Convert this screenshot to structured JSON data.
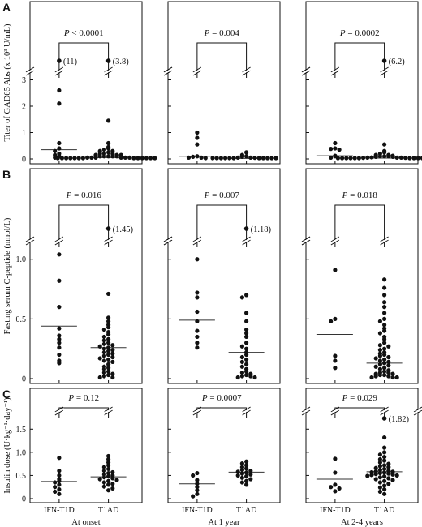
{
  "chart_data": {
    "type": "scatter",
    "group_labels": [
      "IFN-T1D",
      "T1AD"
    ],
    "timepoints": [
      "At onset",
      "At 1 year",
      "At 2-4 years"
    ],
    "panels": [
      {
        "letter": "A",
        "ylabel": "Titer of GAD65 Abs (x 10³ U/mL)",
        "yticks": [
          "0",
          "1",
          "2",
          "3"
        ],
        "ylim": [
          0,
          3.2
        ],
        "charts": [
          {
            "p_label": "P < 0.0001",
            "outliers": [
              {
                "group": 0,
                "label": "(11)"
              },
              {
                "group": 1,
                "label": "(3.8)"
              }
            ],
            "medians": [
              0.35,
              0.05
            ],
            "series": [
              {
                "name": "IFN-T1D",
                "values": [
                  2.6,
                  2.1,
                  0.6,
                  0.4,
                  0.3,
                  0.2,
                  0.15,
                  0.1,
                  0.05
                ]
              },
              {
                "name": "T1AD",
                "values": [
                  1.45,
                  0.6,
                  0.45,
                  0.4,
                  0.35,
                  0.3,
                  0.3,
                  0.25,
                  0.2,
                  0.2,
                  0.2,
                  0.15,
                  0.15,
                  0.15,
                  0.1,
                  0.1,
                  0.1,
                  0.1,
                  0.1,
                  0.05,
                  0.05,
                  0.05,
                  0.05,
                  0.05,
                  0.05,
                  0.03,
                  0.03,
                  0.03,
                  0.03,
                  0.02,
                  0.02,
                  0.02,
                  0.02,
                  0.02,
                  0.01,
                  0.01,
                  0.01,
                  0.01
                ]
              }
            ]
          },
          {
            "p_label": "P = 0.004",
            "outliers": [],
            "medians": [
              0.1,
              0.02
            ],
            "series": [
              {
                "name": "IFN-T1D",
                "values": [
                  1.0,
                  0.8,
                  0.55,
                  0.1,
                  0.08,
                  0.05,
                  0.05,
                  0.03
                ]
              },
              {
                "name": "T1AD",
                "values": [
                  0.25,
                  0.15,
                  0.1,
                  0.08,
                  0.05,
                  0.05,
                  0.04,
                  0.03,
                  0.03,
                  0.02,
                  0.02,
                  0.02,
                  0.01,
                  0.01,
                  0.01,
                  0.01,
                  0.01,
                  0.01
                ]
              }
            ]
          },
          {
            "p_label": "P = 0.0002",
            "outliers": [
              {
                "group": 1,
                "label": "(6.2)"
              }
            ],
            "medians": [
              0.12,
              0.03
            ],
            "series": [
              {
                "name": "IFN-T1D",
                "values": [
                  0.6,
                  0.4,
                  0.38,
                  0.35,
                  0.12,
                  0.1,
                  0.05
                ]
              },
              {
                "name": "T1AD",
                "values": [
                  0.55,
                  0.3,
                  0.25,
                  0.2,
                  0.15,
                  0.15,
                  0.12,
                  0.1,
                  0.1,
                  0.1,
                  0.08,
                  0.08,
                  0.06,
                  0.05,
                  0.05,
                  0.05,
                  0.04,
                  0.04,
                  0.03,
                  0.03,
                  0.03,
                  0.02,
                  0.02,
                  0.02,
                  0.02,
                  0.01,
                  0.01,
                  0.01,
                  0.01,
                  0.01
                ]
              }
            ]
          }
        ]
      },
      {
        "letter": "B",
        "ylabel": "Fasting serum C-peptide (nmol/L)",
        "yticks": [
          "0",
          "0.5",
          "1.0"
        ],
        "ylim": [
          0,
          1.1
        ],
        "charts": [
          {
            "p_label": "P = 0.016",
            "outliers": [
              {
                "group": 1,
                "label": "(1.45)"
              }
            ],
            "medians": [
              0.44,
              0.26
            ],
            "series": [
              {
                "name": "IFN-T1D",
                "values": [
                  1.04,
                  0.82,
                  0.6,
                  0.42,
                  0.36,
                  0.33,
                  0.3,
                  0.26,
                  0.2,
                  0.15,
                  0.13
                ]
              },
              {
                "name": "T1AD",
                "values": [
                  0.71,
                  0.51,
                  0.48,
                  0.45,
                  0.43,
                  0.41,
                  0.39,
                  0.37,
                  0.35,
                  0.33,
                  0.32,
                  0.3,
                  0.29,
                  0.28,
                  0.27,
                  0.26,
                  0.25,
                  0.24,
                  0.23,
                  0.22,
                  0.21,
                  0.2,
                  0.19,
                  0.18,
                  0.17,
                  0.16,
                  0.15,
                  0.14,
                  0.12,
                  0.1,
                  0.09,
                  0.08,
                  0.06,
                  0.05,
                  0.04,
                  0.03,
                  0.02,
                  0.01,
                  0.01
                ]
              }
            ]
          },
          {
            "p_label": "P = 0.007",
            "outliers": [
              {
                "group": 1,
                "label": "(1.18)"
              }
            ],
            "medians": [
              0.49,
              0.22
            ],
            "series": [
              {
                "name": "IFN-T1D",
                "values": [
                  1.0,
                  0.72,
                  0.68,
                  0.56,
                  0.48,
                  0.4,
                  0.35,
                  0.3,
                  0.26
                ]
              },
              {
                "name": "T1AD",
                "values": [
                  0.7,
                  0.68,
                  0.55,
                  0.48,
                  0.41,
                  0.38,
                  0.35,
                  0.3,
                  0.27,
                  0.25,
                  0.22,
                  0.2,
                  0.18,
                  0.16,
                  0.14,
                  0.12,
                  0.1,
                  0.08,
                  0.06,
                  0.05,
                  0.04,
                  0.03,
                  0.02,
                  0.02,
                  0.01,
                  0.01
                ]
              }
            ]
          },
          {
            "p_label": "P = 0.018",
            "outliers": [],
            "medians": [
              0.37,
              0.13
            ],
            "series": [
              {
                "name": "IFN-T1D",
                "values": [
                  0.91,
                  0.5,
                  0.48,
                  0.19,
                  0.15,
                  0.09
                ]
              },
              {
                "name": "T1AD",
                "values": [
                  0.83,
                  0.76,
                  0.7,
                  0.64,
                  0.6,
                  0.55,
                  0.5,
                  0.48,
                  0.45,
                  0.42,
                  0.4,
                  0.38,
                  0.35,
                  0.33,
                  0.3,
                  0.28,
                  0.27,
                  0.25,
                  0.24,
                  0.22,
                  0.21,
                  0.2,
                  0.19,
                  0.18,
                  0.17,
                  0.16,
                  0.15,
                  0.14,
                  0.13,
                  0.12,
                  0.11,
                  0.1,
                  0.09,
                  0.08,
                  0.07,
                  0.06,
                  0.05,
                  0.05,
                  0.04,
                  0.04,
                  0.03,
                  0.03,
                  0.02,
                  0.02,
                  0.01,
                  0.01,
                  0.01
                ]
              }
            ]
          }
        ]
      },
      {
        "letter": "C",
        "ylabel": "Insulin dose (U·kg⁻¹·day⁻¹)",
        "yticks": [
          "0",
          "0.5",
          "1.0",
          "1.5"
        ],
        "ylim": [
          0,
          1.75
        ],
        "charts": [
          {
            "p_label": "P = 0.12",
            "outliers": [],
            "medians": [
              0.37,
              0.47
            ],
            "series": [
              {
                "name": "IFN-T1D",
                "values": [
                  0.88,
                  0.6,
                  0.5,
                  0.42,
                  0.38,
                  0.35,
                  0.3,
                  0.25,
                  0.2,
                  0.15,
                  0.1
                ]
              },
              {
                "name": "T1AD",
                "values": [
                  0.92,
                  0.85,
                  0.78,
                  0.72,
                  0.68,
                  0.64,
                  0.6,
                  0.57,
                  0.55,
                  0.52,
                  0.5,
                  0.48,
                  0.46,
                  0.44,
                  0.42,
                  0.4,
                  0.38,
                  0.35,
                  0.32,
                  0.3,
                  0.26,
                  0.22,
                  0.18
                ]
              }
            ]
          },
          {
            "p_label": "P = 0.0007",
            "outliers": [],
            "medians": [
              0.32,
              0.57
            ],
            "series": [
              {
                "name": "IFN-T1D",
                "values": [
                  0.55,
                  0.5,
                  0.4,
                  0.32,
                  0.25,
                  0.18,
                  0.1,
                  0.05
                ]
              },
              {
                "name": "T1AD",
                "values": [
                  0.8,
                  0.76,
                  0.72,
                  0.68,
                  0.65,
                  0.62,
                  0.6,
                  0.58,
                  0.56,
                  0.54,
                  0.52,
                  0.5,
                  0.48,
                  0.45,
                  0.42,
                  0.38,
                  0.35,
                  0.3
                ]
              }
            ]
          },
          {
            "p_label": "P = 0.029",
            "outliers": [
              {
                "group": 1,
                "label": "(1.82)"
              }
            ],
            "medians": [
              0.42,
              0.58
            ],
            "series": [
              {
                "name": "IFN-T1D",
                "values": [
                  0.86,
                  0.56,
                  0.3,
                  0.25,
                  0.22,
                  0.16
                ]
              },
              {
                "name": "T1AD",
                "values": [
                  1.32,
                  1.1,
                  1.0,
                  0.95,
                  0.9,
                  0.85,
                  0.82,
                  0.78,
                  0.75,
                  0.72,
                  0.7,
                  0.68,
                  0.66,
                  0.64,
                  0.62,
                  0.6,
                  0.59,
                  0.58,
                  0.57,
                  0.56,
                  0.55,
                  0.54,
                  0.53,
                  0.52,
                  0.51,
                  0.5,
                  0.49,
                  0.48,
                  0.46,
                  0.44,
                  0.42,
                  0.4,
                  0.38,
                  0.35,
                  0.32,
                  0.28,
                  0.24,
                  0.2,
                  0.15,
                  0.1
                ]
              }
            ]
          }
        ]
      }
    ]
  }
}
